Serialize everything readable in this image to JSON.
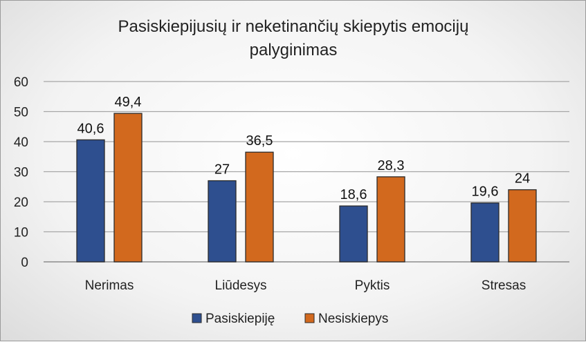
{
  "chart_data": {
    "type": "bar",
    "title_lines": [
      "Pasiskiepijusių  ir neketinančių  skiepytis emocijų",
      "palyginimas"
    ],
    "categories": [
      "Nerimas",
      "Liūdesys",
      "Pyktis",
      "Stresas"
    ],
    "series": [
      {
        "name": "Pasiskiepiję",
        "values": [
          40.6,
          27,
          18.6,
          19.6
        ],
        "labels": [
          "40,6",
          "27",
          "18,6",
          "19,6"
        ],
        "color": "#2E4F8F"
      },
      {
        "name": "Nesiskiepys",
        "values": [
          49.4,
          36.5,
          28.3,
          24
        ],
        "labels": [
          "49,4",
          "36,5",
          "28,3",
          "24"
        ],
        "color": "#D2691E"
      }
    ],
    "ylim": [
      0,
      60
    ],
    "yticks": [
      0,
      10,
      20,
      30,
      40,
      50,
      60
    ],
    "grid": true,
    "legend": "bottom"
  }
}
